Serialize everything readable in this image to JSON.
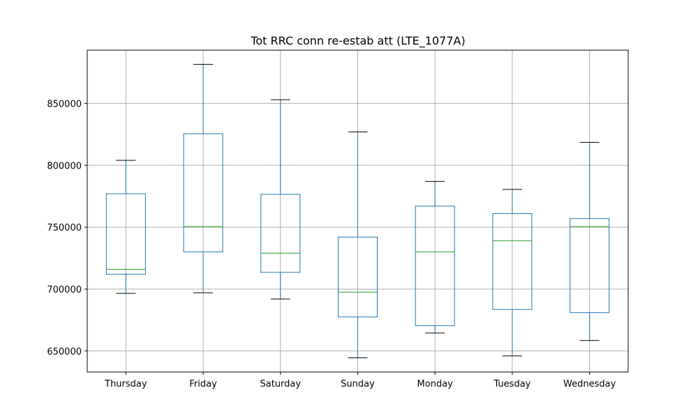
{
  "chart_data": {
    "type": "box",
    "title": "Tot RRC conn re-estab att (LTE_1077A)",
    "xlabel": "",
    "ylabel": "",
    "ylim": [
      633000,
      893000
    ],
    "yticks": [
      650000,
      700000,
      750000,
      800000,
      850000
    ],
    "ytick_labels": [
      "650000",
      "700000",
      "750000",
      "800000",
      "850000"
    ],
    "grid": true,
    "categories": [
      "Thursday",
      "Friday",
      "Saturday",
      "Sunday",
      "Monday",
      "Tuesday",
      "Wednesday"
    ],
    "boxes": [
      {
        "label": "Thursday",
        "whislo": 696500,
        "q1": 712000,
        "med": 716000,
        "q3": 777000,
        "whishi": 804000
      },
      {
        "label": "Friday",
        "whislo": 697000,
        "q1": 730000,
        "med": 750500,
        "q3": 825500,
        "whishi": 881500
      },
      {
        "label": "Saturday",
        "whislo": 692000,
        "q1": 713500,
        "med": 729000,
        "q3": 776500,
        "whishi": 853000
      },
      {
        "label": "Sunday",
        "whislo": 644500,
        "q1": 677500,
        "med": 697500,
        "q3": 742000,
        "whishi": 827000
      },
      {
        "label": "Monday",
        "whislo": 664500,
        "q1": 670500,
        "med": 730000,
        "q3": 767000,
        "whishi": 787000
      },
      {
        "label": "Tuesday",
        "whislo": 646000,
        "q1": 683500,
        "med": 739000,
        "q3": 761000,
        "whishi": 780500
      },
      {
        "label": "Wednesday",
        "whislo": 658500,
        "q1": 681000,
        "med": 750500,
        "q3": 757000,
        "whishi": 818500
      }
    ],
    "colors": {
      "box": "#1f77b4",
      "median": "#2ca02c",
      "cap": "#000000",
      "grid": "#b0b0b0",
      "axes": "#000000"
    }
  }
}
